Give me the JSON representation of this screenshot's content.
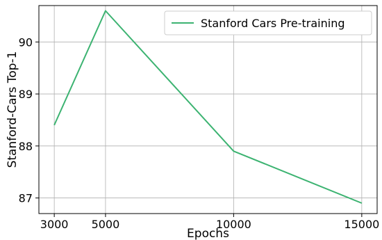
{
  "chart_data": {
    "type": "line",
    "title": "",
    "xlabel": "Epochs",
    "ylabel": "Stanford-Cars Top-1",
    "x": [
      3000,
      5000,
      10000,
      15000
    ],
    "x_ticks": [
      3000,
      5000,
      10000,
      15000
    ],
    "x_tick_labels": [
      "3000",
      "5000",
      "10000",
      "15000"
    ],
    "y_ticks": [
      87,
      88,
      89,
      90
    ],
    "y_tick_labels": [
      "87",
      "88",
      "89",
      "90"
    ],
    "xlim": [
      2400,
      15600
    ],
    "ylim": [
      86.7,
      90.7
    ],
    "grid": true,
    "legend_position": "top-right",
    "series": [
      {
        "name": "Stanford Cars Pre-training",
        "color": "#3cb371",
        "values": [
          88.4,
          90.6,
          87.9,
          86.9
        ]
      }
    ]
  }
}
